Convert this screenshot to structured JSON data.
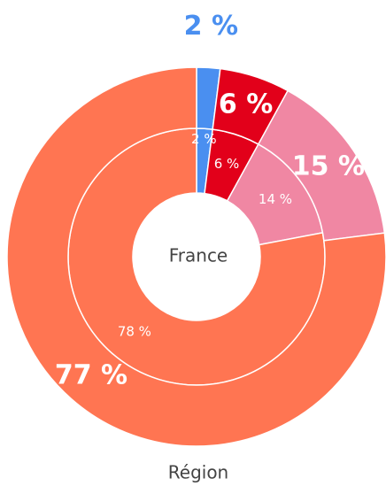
{
  "chart_data": {
    "type": "donut",
    "colors": [
      "#4a8ff0",
      "#e2001a",
      "#f087a3",
      "#ff7552"
    ],
    "series": [
      {
        "name": "France",
        "values": [
          2,
          6,
          14,
          78
        ],
        "value_labels": [
          "2 %",
          "6 %",
          "14 %",
          "78 %"
        ]
      },
      {
        "name": "Région",
        "values": [
          2,
          6,
          15,
          77
        ],
        "value_labels": [
          "2 %",
          "6 %",
          "15 %",
          "77 %"
        ]
      }
    ]
  }
}
